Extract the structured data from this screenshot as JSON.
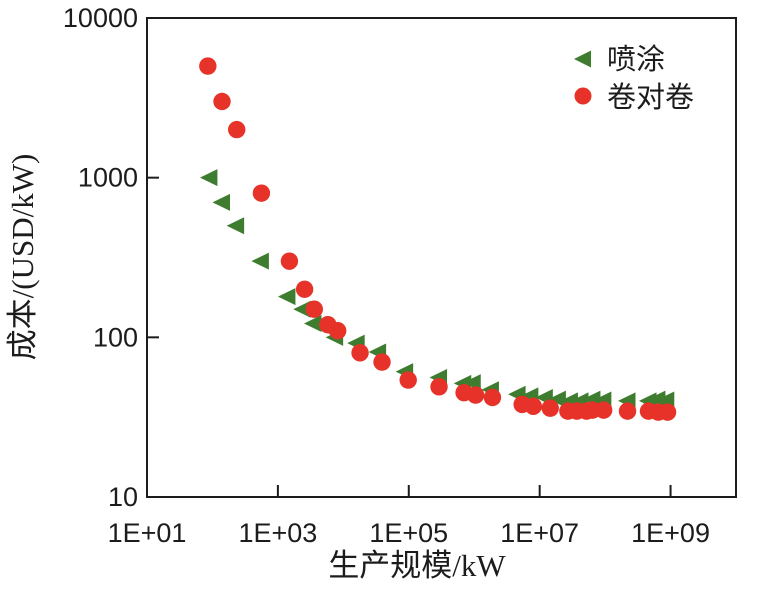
{
  "figure": {
    "background": "#ffffff",
    "axis_color": "#1c1c1c",
    "text_color": "#1c1c1c"
  },
  "chart_data": {
    "type": "scatter",
    "x_scale": "log",
    "y_scale": "log",
    "xlim": [
      10,
      10000000000
    ],
    "ylim": [
      10,
      10000
    ],
    "xlabel": "生产规模/kW",
    "ylabel": "成本/(USD/kW)",
    "grid": false,
    "legend_position": "top-right",
    "x_ticks": [
      {
        "value": 10,
        "label": "1E+01"
      },
      {
        "value": 1000,
        "label": "1E+03"
      },
      {
        "value": 100000,
        "label": "1E+05"
      },
      {
        "value": 10000000,
        "label": "1E+07"
      },
      {
        "value": 1000000000,
        "label": "1E+09"
      }
    ],
    "y_ticks": [
      {
        "value": 10,
        "label": "10"
      },
      {
        "value": 100,
        "label": "100"
      },
      {
        "value": 1000,
        "label": "1000"
      },
      {
        "value": 10000,
        "label": "10000"
      }
    ],
    "series": [
      {
        "name": "喷涂",
        "marker": "triangle-left",
        "color": "#3e7d2f",
        "points": [
          [
            90,
            1000
          ],
          [
            140,
            700
          ],
          [
            230,
            500
          ],
          [
            550,
            300
          ],
          [
            1400,
            180
          ],
          [
            2400,
            150
          ],
          [
            3500,
            122
          ],
          [
            4800,
            118
          ],
          [
            7500,
            100
          ],
          [
            16000,
            92
          ],
          [
            34000,
            81
          ],
          [
            88000,
            61
          ],
          [
            290000,
            56
          ],
          [
            680000,
            51.5
          ],
          [
            950000,
            52
          ],
          [
            1800000,
            47
          ],
          [
            4600000,
            44
          ],
          [
            7200000,
            43
          ],
          [
            12000000,
            42
          ],
          [
            19000000,
            41
          ],
          [
            29000000,
            40
          ],
          [
            42000000,
            40
          ],
          [
            64000000,
            41
          ],
          [
            94000000,
            40.5
          ],
          [
            220000000,
            40
          ],
          [
            460000000,
            40
          ],
          [
            630000000,
            41
          ],
          [
            860000000,
            40.5
          ]
        ]
      },
      {
        "name": "卷对卷",
        "marker": "circle",
        "color": "#e63228",
        "points": [
          [
            85,
            5000
          ],
          [
            140,
            3000
          ],
          [
            235,
            2000
          ],
          [
            560,
            800
          ],
          [
            1500,
            300
          ],
          [
            2560,
            200
          ],
          [
            3600,
            150
          ],
          [
            5800,
            120
          ],
          [
            8200,
            110
          ],
          [
            18000,
            80
          ],
          [
            39000,
            70
          ],
          [
            98000,
            54
          ],
          [
            290000,
            49
          ],
          [
            700000,
            45
          ],
          [
            1050000,
            43.5
          ],
          [
            1900000,
            42
          ],
          [
            5400000,
            38
          ],
          [
            8000000,
            37
          ],
          [
            14500000,
            36
          ],
          [
            27000000,
            34.5
          ],
          [
            37000000,
            34.5
          ],
          [
            52000000,
            34.5
          ],
          [
            64000000,
            35
          ],
          [
            95000000,
            35
          ],
          [
            220000000,
            34.5
          ],
          [
            460000000,
            34.5
          ],
          [
            650000000,
            34
          ],
          [
            900000000,
            34
          ]
        ]
      }
    ]
  }
}
